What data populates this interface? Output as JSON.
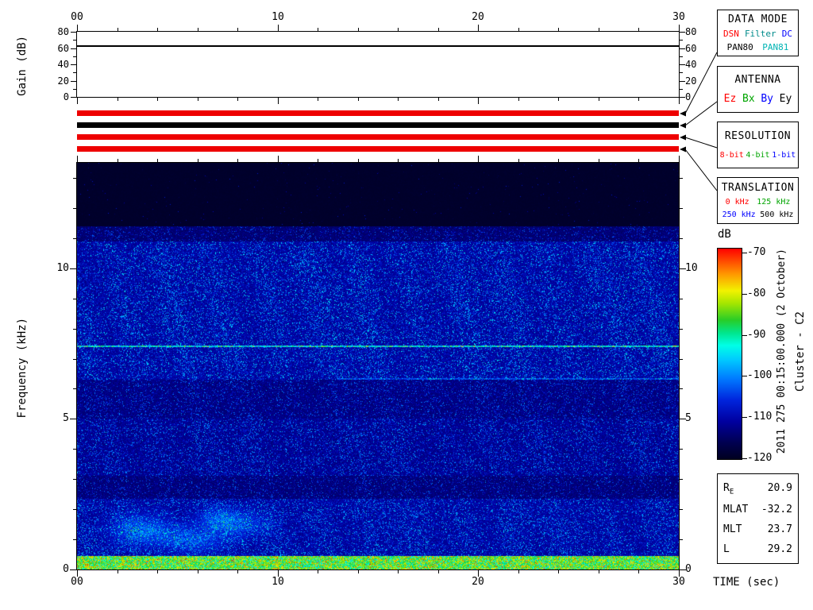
{
  "time_axis": {
    "xlabel": "TIME (sec)",
    "t_max": 30,
    "minor_step_sec": 2,
    "ticks_sec": [
      0,
      10,
      20,
      30
    ],
    "tick_labels": [
      "00",
      "10",
      "20",
      "30"
    ]
  },
  "gain_plot": {
    "ylabel": "Gain (dB)",
    "ymax": 80,
    "minor_step": 10,
    "yticks": [
      0,
      20,
      40,
      60,
      80
    ]
  },
  "spectrogram_axis": {
    "ylabel": "Frequency (kHz)",
    "f_max": 13.5,
    "minor_step": 1,
    "yticks": [
      0,
      5,
      10
    ]
  },
  "status_bars": [
    {
      "name": "data-mode-in-effect",
      "color": "#ee0000"
    },
    {
      "name": "antenna-in-effect",
      "color": "#000000"
    },
    {
      "name": "resolution-in-effect",
      "color": "#ee0000"
    },
    {
      "name": "translation-in-effect",
      "color": "#ee0000"
    }
  ],
  "panels": [
    {
      "title": "DATA MODE",
      "rows": [
        [
          {
            "t": "DSN",
            "c": "#ff0000"
          },
          {
            "t": "Filter",
            "c": "#008b8b"
          },
          {
            "t": "DC",
            "c": "#0000ff"
          }
        ],
        [
          {
            "t": "PAN80",
            "c": "#000000"
          },
          {
            "t": "PAN81",
            "c": "#00b4b4"
          }
        ]
      ]
    },
    {
      "title": "ANTENNA",
      "rows": [
        [
          {
            "t": "Ez",
            "c": "#ff0000"
          },
          {
            "t": "Bx",
            "c": "#00a500"
          },
          {
            "t": "By",
            "c": "#0000ff"
          },
          {
            "t": "Ey",
            "c": "#000000"
          }
        ]
      ]
    },
    {
      "title": "RESOLUTION",
      "rows": [
        [
          {
            "t": "8-bit",
            "c": "#ff0000"
          },
          {
            "t": "4-bit",
            "c": "#00a500"
          },
          {
            "t": "1-bit",
            "c": "#0000ff"
          }
        ]
      ]
    },
    {
      "title": "TRANSLATION",
      "rows": [
        [
          {
            "t": "0 kHz",
            "c": "#ff0000"
          },
          {
            "t": "125 kHz",
            "c": "#00a500"
          }
        ],
        [
          {
            "t": "250 kHz",
            "c": "#0000ff"
          },
          {
            "t": "500 kHz",
            "c": "#000000"
          }
        ]
      ]
    }
  ],
  "colorbar": {
    "label": "dB",
    "ticks": [
      -70,
      -80,
      -90,
      -100,
      -110,
      -120
    ],
    "max": -70,
    "min": -120
  },
  "side_text": {
    "datetime": "2011 275 00:15:00.000 (2 October)",
    "spacecraft": "Cluster - C2"
  },
  "ephemeris": {
    "rows": [
      {
        "key": "R",
        "sub": "E",
        "value": "20.9"
      },
      {
        "key": "MLAT",
        "sub": "",
        "value": "-32.2"
      },
      {
        "key": "MLT",
        "sub": "",
        "value": "23.7"
      },
      {
        "key": "L",
        "sub": "",
        "value": "29.2"
      }
    ]
  },
  "chart_data": [
    {
      "type": "line",
      "title": "Receiver gain",
      "xlabel": "TIME (sec)",
      "ylabel": "Gain (dB)",
      "xlim": [
        0,
        30
      ],
      "ylim": [
        0,
        80
      ],
      "x": [
        0,
        30
      ],
      "values": [
        62,
        62
      ]
    },
    {
      "type": "heatmap",
      "title": "Cluster C2 WBD wideband spectrogram",
      "xlabel": "TIME (sec)",
      "ylabel": "Frequency (kHz)",
      "zlabel": "dB",
      "xlim": [
        0,
        30
      ],
      "ylim": [
        0,
        13.5
      ],
      "zlim": [
        -120,
        -70
      ],
      "bands": [
        {
          "f_lo": 11.4,
          "f_hi": 13.5,
          "level_db": -119,
          "speckle_db": -107,
          "density": 0.012
        },
        {
          "f_lo": 10.9,
          "f_hi": 11.4,
          "level_db": -114,
          "speckle_db": -101,
          "density": 0.3
        },
        {
          "f_lo": 6.3,
          "f_hi": 10.9,
          "level_db": -111,
          "speckle_db": -94,
          "density": 0.5
        },
        {
          "f_lo": 5.0,
          "f_hi": 6.3,
          "level_db": -113,
          "speckle_db": -99,
          "density": 0.38
        },
        {
          "f_lo": 3.1,
          "f_hi": 5.0,
          "level_db": -112,
          "speckle_db": -97,
          "density": 0.45
        },
        {
          "f_lo": 2.35,
          "f_hi": 3.1,
          "level_db": -113.5,
          "speckle_db": -100,
          "density": 0.33
        },
        {
          "f_lo": 0.45,
          "f_hi": 2.35,
          "level_db": -111,
          "speckle_db": -95,
          "density": 0.48
        },
        {
          "f_lo": 0.0,
          "f_hi": 0.45,
          "level_db": -89,
          "speckle_db": -78,
          "density": 0.9
        }
      ],
      "lines": [
        {
          "f": 7.41,
          "half_width": 0.035,
          "boost_db": 15,
          "t_lo": 0,
          "t_hi": 30
        },
        {
          "f": 6.32,
          "half_width": 0.03,
          "boost_db": 6,
          "t_lo": 13,
          "t_hi": 30
        }
      ],
      "blobs": [
        {
          "t": 3.2,
          "f": 1.3,
          "st": 1.0,
          "sf": 0.35,
          "boost_db": 9
        },
        {
          "t": 5.8,
          "f": 1.0,
          "st": 1.1,
          "sf": 0.3,
          "boost_db": 8
        },
        {
          "t": 8.2,
          "f": 1.5,
          "st": 0.9,
          "sf": 0.3,
          "boost_db": 7
        },
        {
          "t": 6.9,
          "f": 1.7,
          "st": 0.7,
          "sf": 0.25,
          "boost_db": 6
        }
      ],
      "time_modulation": {
        "period_sec": 2.4,
        "depth": 0.25
      }
    }
  ]
}
